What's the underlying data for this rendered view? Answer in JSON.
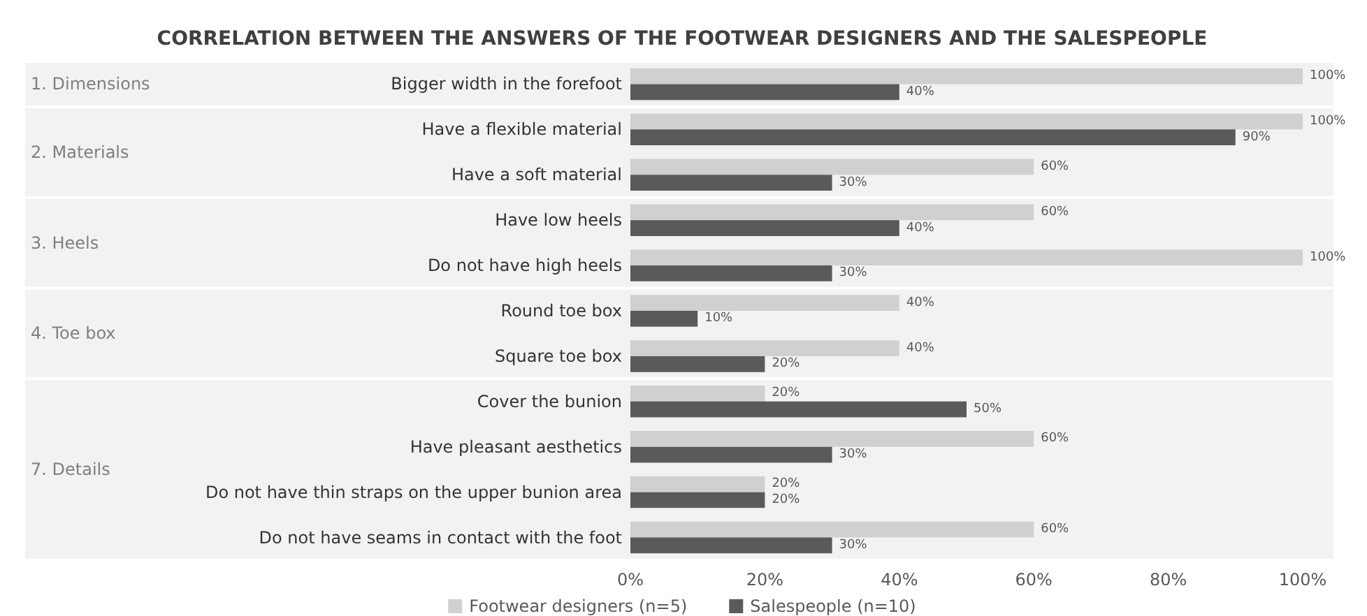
{
  "chart_data": {
    "type": "bar",
    "orientation": "horizontal",
    "title": "CORRELATION BETWEEN THE ANSWERS OF THE FOOTWEAR DESIGNERS AND THE SALESPEOPLE",
    "categories": [
      "Bigger width in the forefoot",
      "Have a flexible material",
      "Have a soft material",
      "Have low heels",
      "Do not have high heels",
      "Round toe box",
      "Square toe box",
      "Cover the bunion",
      "Have pleasant aesthetics",
      "Do not have thin straps on the upper bunion area",
      "Do not have seams in contact with the foot"
    ],
    "series": [
      {
        "name": "Footwear designers (n=5)",
        "color": "#d0d0d0",
        "values": [
          100,
          100,
          60,
          60,
          100,
          40,
          40,
          20,
          60,
          20,
          60
        ],
        "value_labels": [
          "100%",
          "100%",
          "60%",
          "60%",
          "100%",
          "40%",
          "40%",
          "20%",
          "60%",
          "20%",
          "60%"
        ]
      },
      {
        "name": "Salespeople (n=10)",
        "color": "#5a5a5a",
        "values": [
          40,
          90,
          30,
          40,
          30,
          10,
          20,
          50,
          30,
          20,
          30
        ],
        "value_labels": [
          "40%",
          "90%",
          "30%",
          "40%",
          "30%",
          "10%",
          "20%",
          "50%",
          "30%",
          "20%",
          "30%"
        ]
      }
    ],
    "xlim": [
      0,
      100
    ],
    "xticks": [
      {
        "value": 0,
        "label": "0%"
      },
      {
        "value": 20,
        "label": "20%"
      },
      {
        "value": 40,
        "label": "40%"
      },
      {
        "value": 60,
        "label": "60%"
      },
      {
        "value": 80,
        "label": "80%"
      },
      {
        "value": 100,
        "label": "100%"
      }
    ],
    "bands": [
      {
        "axis": "y",
        "from": "Bigger width in the forefoot",
        "to": "Bigger width in the forefoot",
        "label": "1. Dimensions",
        "color": "#f2f2f2"
      },
      {
        "axis": "y",
        "from": "Have a flexible material",
        "to": "Have a soft material",
        "label": "2. Materials",
        "color": "#f2f2f2"
      },
      {
        "axis": "y",
        "from": "Have low heels",
        "to": "Do not have high heels",
        "label": "3. Heels",
        "color": "#f2f2f2"
      },
      {
        "axis": "y",
        "from": "Round toe box",
        "to": "Square toe box",
        "label": "4. Toe box",
        "color": "#f2f2f2"
      },
      {
        "axis": "y",
        "from": "Cover the bunion",
        "to": "Do not have seams in contact with the foot",
        "label": "7. Details",
        "color": "#f2f2f2"
      }
    ],
    "grid": false,
    "legend": "bottom"
  }
}
